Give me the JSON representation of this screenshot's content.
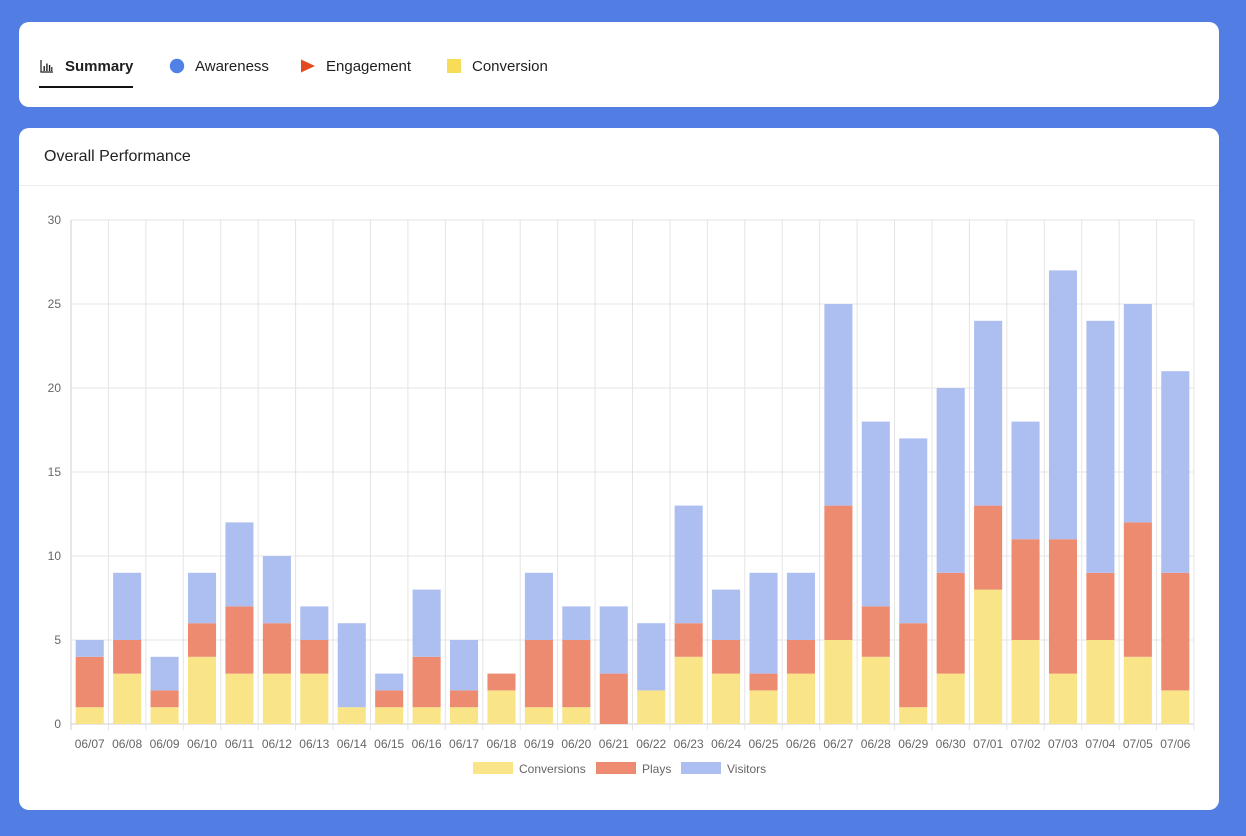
{
  "colors": {
    "page_bg": "#527de3",
    "card_bg": "#ffffff",
    "conversion_yellow": "#f9e487",
    "plays_red": "#ed8b71",
    "visitors_blue": "#adbff1",
    "awareness_blue": "#5180e6",
    "engagement_red": "#e24b1e",
    "conversion_icon_yellow": "#f7dd57",
    "grid": "#e4e4e4"
  },
  "tabs": [
    {
      "label": "Summary",
      "icon": "bar-chart-icon",
      "active": true
    },
    {
      "label": "Awareness",
      "icon": "circle-icon",
      "active": false
    },
    {
      "label": "Engagement",
      "icon": "play-triangle-icon",
      "active": false
    },
    {
      "label": "Conversion",
      "icon": "square-icon",
      "active": false
    }
  ],
  "chart": {
    "title": "Overall Performance"
  },
  "chart_data": {
    "type": "bar",
    "stacked": true,
    "categories": [
      "06/07",
      "06/08",
      "06/09",
      "06/10",
      "06/11",
      "06/12",
      "06/13",
      "06/14",
      "06/15",
      "06/16",
      "06/17",
      "06/18",
      "06/19",
      "06/20",
      "06/21",
      "06/22",
      "06/23",
      "06/24",
      "06/25",
      "06/26",
      "06/27",
      "06/28",
      "06/29",
      "06/30",
      "07/01",
      "07/02",
      "07/03",
      "07/04",
      "07/05",
      "07/06"
    ],
    "series": [
      {
        "name": "Conversions",
        "values": [
          1,
          3,
          1,
          4,
          3,
          3,
          3,
          1,
          1,
          1,
          1,
          2,
          1,
          1,
          0,
          2,
          4,
          3,
          2,
          3,
          5,
          4,
          1,
          3,
          8,
          5,
          3,
          5,
          4,
          2
        ]
      },
      {
        "name": "Plays",
        "values": [
          3,
          2,
          1,
          2,
          4,
          3,
          2,
          0,
          1,
          3,
          1,
          1,
          4,
          4,
          3,
          0,
          2,
          2,
          1,
          2,
          8,
          3,
          5,
          6,
          5,
          6,
          8,
          4,
          8,
          7
        ]
      },
      {
        "name": "Visitors",
        "values": [
          1,
          4,
          2,
          3,
          5,
          4,
          2,
          5,
          1,
          4,
          3,
          0,
          4,
          2,
          4,
          4,
          7,
          3,
          6,
          4,
          12,
          11,
          11,
          11,
          11,
          7,
          16,
          15,
          13,
          12
        ]
      }
    ],
    "ylim": [
      0,
      30
    ],
    "yticks": [
      0,
      5,
      10,
      15,
      20,
      25,
      30
    ],
    "title": "Overall Performance",
    "xlabel": "",
    "ylabel": "",
    "grid": true,
    "legend_position": "bottom-center"
  }
}
